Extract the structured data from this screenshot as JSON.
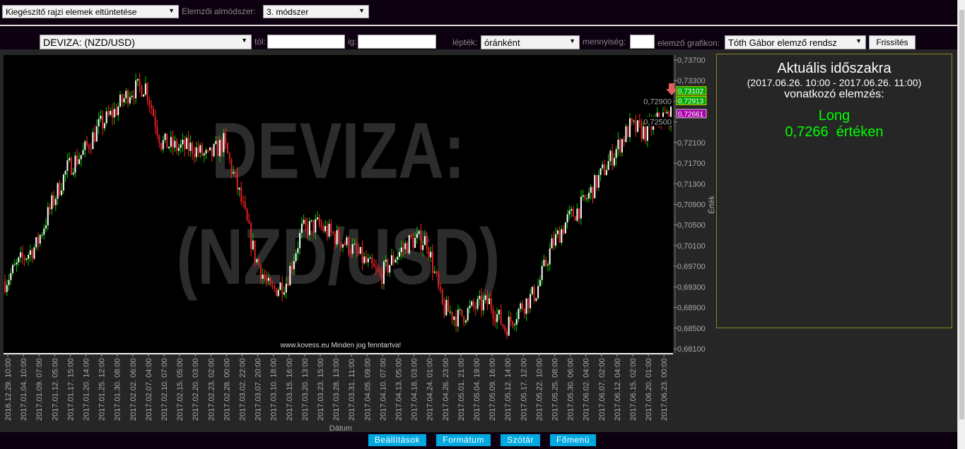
{
  "toolbar1": {
    "drawing_select": "Kiegészítő rajzi elemek eltüntetése",
    "submethod_label": "Elemzői almódszer:",
    "submethod_select": "3. módszer"
  },
  "toolbar2": {
    "instrument_select": "DEVIZA: (NZD/USD)",
    "from_label": "tól:",
    "from_value": "",
    "to_label": "ig:",
    "to_value": "",
    "scale_label": "lépték:",
    "scale_select": "óránként",
    "qty_label": "mennyiség:",
    "qty_value": "",
    "chart_label": "elemző grafikon:",
    "chart_select": "Tóth Gábor elemző rendsz",
    "refresh": "Frissítés"
  },
  "chart": {
    "watermark_line1": "DEVIZA:",
    "watermark_line2": "(NZD/USD)",
    "copyright": "www.kovess.eu Minden jog fenntartva!",
    "ylabel": "Érték",
    "xlabel": "Dátum",
    "markers": [
      {
        "value": "0,73102",
        "color": "#00aa00"
      },
      {
        "value": "0,72913",
        "color": "#00aa00"
      },
      {
        "value": "0,72661",
        "color": "#aa00aa"
      }
    ],
    "up_color": "#ffffff",
    "down_color": "#dd2222",
    "up_wick": "#00cc00",
    "down_wick": "#ff2222"
  },
  "chart_data": {
    "type": "candlestick",
    "ylim": [
      0.681,
      0.737
    ],
    "yticks": [
      "0,73700",
      "0,73300",
      "0,72900",
      "0,72500",
      "0,72100",
      "0,71700",
      "0,71300",
      "0,70900",
      "0,70500",
      "0,70100",
      "0,69700",
      "0,69300",
      "0,68900",
      "0,68500",
      "0,68100"
    ],
    "xticks": [
      "2016.12.29. 10:00",
      "2017.01.04. 10:00",
      "2017.01.09. 07:00",
      "2017.01.12. 05:00",
      "2017.01.17. 15:00",
      "2017.01.20. 14:00",
      "2017.01.25. 12:00",
      "2017.01.30. 08:00",
      "2017.02.02. 06:00",
      "2017.02.07. 04:00",
      "2017.02.10. 07:00",
      "2017.02.15. 05:00",
      "2017.02.20. 03:00",
      "2017.02.23. 02:00",
      "2017.02.28. 00:00",
      "2017.03.02. 22:00",
      "2017.03.07. 20:00",
      "2017.03.10. 18:00",
      "2017.03.15. 16:00",
      "2017.03.20. 13:00",
      "2017.03.23. 15:00",
      "2017.03.28. 13:00",
      "2017.03.31. 11:00",
      "2017.04.05. 09:00",
      "2017.04.10. 07:00",
      "2017.04.13. 05:00",
      "2017.04.18. 03:00",
      "2017.04.24. 01:00",
      "2017.04.26. 23:00",
      "2017.05.01. 21:00",
      "2017.05.04. 19:00",
      "2017.05.09. 16:00",
      "2017.05.12. 14:00",
      "2017.05.17. 12:00",
      "2017.05.22. 10:00",
      "2017.05.25. 08:00",
      "2017.05.30. 06:00",
      "2017.06.02. 04:00",
      "2017.06.07. 02:00",
      "2017.06.12. 04:00",
      "2017.06.15. 02:00",
      "2017.06.20. 01:00",
      "2017.06.23. 00:00"
    ],
    "approx_close": [
      0.694,
      0.698,
      0.701,
      0.709,
      0.716,
      0.719,
      0.724,
      0.727,
      0.731,
      0.732,
      0.721,
      0.72,
      0.72,
      0.718,
      0.721,
      0.711,
      0.699,
      0.692,
      0.694,
      0.704,
      0.705,
      0.703,
      0.701,
      0.698,
      0.695,
      0.699,
      0.702,
      0.702,
      0.689,
      0.687,
      0.689,
      0.69,
      0.685,
      0.689,
      0.692,
      0.701,
      0.706,
      0.709,
      0.714,
      0.719,
      0.724,
      0.723,
      0.726
    ]
  },
  "panel": {
    "title": "Aktuális időszakra",
    "period": "(2017.06.26. 10:00 - 2017.06.26. 11:00)",
    "subtitle": "vonatkozó elemzés:",
    "signal": "Long",
    "value": "0,7266  értéken",
    "signal_color": "#00ff00"
  },
  "footer": {
    "settings": "Beállítások",
    "format": "Formátum",
    "dictionary": "Szótár",
    "main_menu": "Főmenü"
  }
}
